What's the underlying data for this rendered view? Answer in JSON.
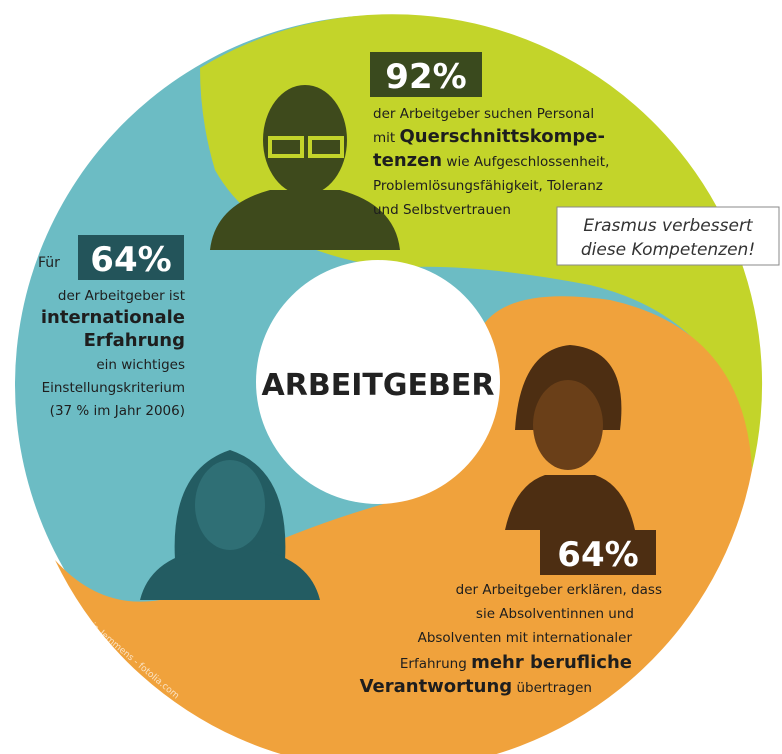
{
  "center_label": "ARBEITGEBER",
  "callout": [
    "Erasmus verbessert",
    "diese Kompetenzen!"
  ],
  "watermark": "© chris_lemmens - fotolia.com",
  "top": {
    "percent": "92%",
    "lines": [
      [
        {
          "t": "der Arbeitgeber suchen Personal"
        }
      ],
      [
        {
          "t": "mit "
        },
        {
          "t": "Querschnittskompe-",
          "b": true
        }
      ],
      [
        {
          "t": "tenzen",
          "b": true
        },
        {
          "t": " wie Aufgeschlossenheit,"
        }
      ],
      [
        {
          "t": "Problemlösungsfähigkeit, Toleranz"
        }
      ],
      [
        {
          "t": "und Selbstvertrauen"
        }
      ]
    ]
  },
  "left": {
    "prefix": "Für",
    "percent": "64%",
    "lines": [
      [
        {
          "t": "der Arbeitgeber ist"
        }
      ],
      [
        {
          "t": "internationale",
          "b": true
        }
      ],
      [
        {
          "t": "Erfahrung",
          "b": true
        }
      ],
      [
        {
          "t": "ein wichtiges"
        }
      ],
      [
        {
          "t": "Einstellungskriterium"
        }
      ],
      [
        {
          "t": "(37 % im Jahr 2006)"
        }
      ]
    ]
  },
  "bottom": {
    "percent": "64%",
    "lines": [
      [
        {
          "t": "der Arbeitgeber erklären, dass"
        }
      ],
      [
        {
          "t": "sie Absolventinnen und"
        }
      ],
      [
        {
          "t": "Absolventen mit internationaler"
        }
      ],
      [
        {
          "t": "Erfahrung "
        },
        {
          "t": "mehr berufliche",
          "b": true
        }
      ],
      [
        {
          "t": "Verantwortung",
          "b": true
        },
        {
          "t": " übertragen"
        }
      ]
    ]
  }
}
